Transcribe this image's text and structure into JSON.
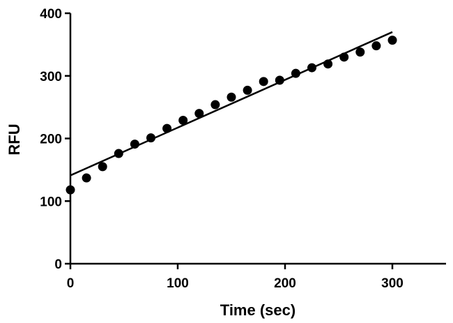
{
  "chart_data": {
    "type": "scatter",
    "xlabel": "Time (sec)",
    "ylabel": "RFU",
    "xlim": [
      0,
      350
    ],
    "ylim": [
      0,
      400
    ],
    "x_ticks": [
      0,
      100,
      200,
      300
    ],
    "y_ticks": [
      0,
      100,
      200,
      300,
      400
    ],
    "x_tick_labels": [
      "0",
      "100",
      "200",
      "300"
    ],
    "y_tick_labels": [
      "0",
      "100",
      "200",
      "300",
      "400"
    ],
    "grid": false,
    "legend": "none",
    "colors": {
      "points": "#000000",
      "fit_line": "#000000",
      "axes": "#000000"
    },
    "series": [
      {
        "x": [
          0,
          15,
          30,
          45,
          60,
          75,
          90,
          105,
          120,
          135,
          150,
          165,
          180,
          195,
          210,
          225,
          240,
          255,
          270,
          285,
          300
        ],
        "y": [
          118,
          137,
          155,
          176,
          191,
          201,
          216,
          229,
          240,
          254,
          266,
          277,
          291,
          293,
          304,
          313,
          319,
          330,
          338,
          348,
          357
        ]
      }
    ],
    "fit_line": {
      "x": [
        0,
        300
      ],
      "y": [
        141,
        370
      ]
    }
  }
}
